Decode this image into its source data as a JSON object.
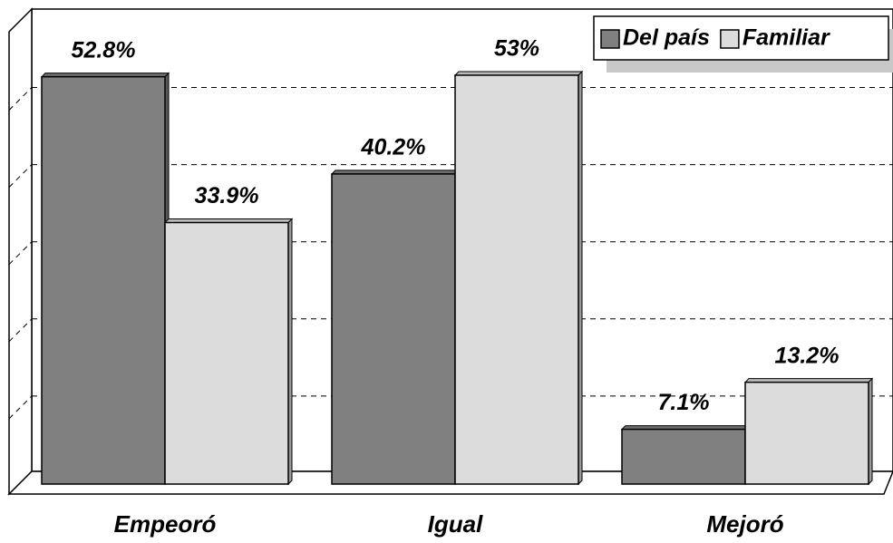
{
  "chart_data": {
    "type": "bar",
    "categories": [
      "Empeoró",
      "Igual",
      "Mejoró"
    ],
    "series": [
      {
        "name": "Del país",
        "color": "#808080",
        "values": [
          52.8,
          40.2,
          7.1
        ],
        "value_labels": [
          "52.8%",
          "40.2%",
          "7.1%"
        ]
      },
      {
        "name": "Familiar",
        "color": "#dcdcdc",
        "values": [
          33.9,
          53,
          13.2
        ],
        "value_labels": [
          "33.9%",
          "53%",
          "13.2%"
        ]
      }
    ],
    "ylim": [
      0,
      60
    ],
    "yticks": [
      0,
      10,
      20,
      30,
      40,
      50,
      60
    ],
    "grid": true,
    "legend": "top-right"
  }
}
